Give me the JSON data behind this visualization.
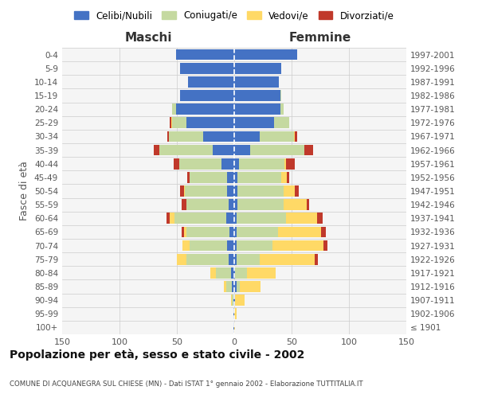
{
  "age_groups": [
    "100+",
    "95-99",
    "90-94",
    "85-89",
    "80-84",
    "75-79",
    "70-74",
    "65-69",
    "60-64",
    "55-59",
    "50-54",
    "45-49",
    "40-44",
    "35-39",
    "30-34",
    "25-29",
    "20-24",
    "15-19",
    "10-14",
    "5-9",
    "0-4"
  ],
  "birth_years": [
    "≤ 1901",
    "1902-1906",
    "1907-1911",
    "1912-1916",
    "1917-1921",
    "1922-1926",
    "1927-1931",
    "1932-1936",
    "1937-1941",
    "1942-1946",
    "1947-1951",
    "1952-1956",
    "1957-1961",
    "1962-1966",
    "1967-1971",
    "1972-1976",
    "1977-1981",
    "1982-1986",
    "1987-1991",
    "1992-1996",
    "1997-2001"
  ],
  "maschi": {
    "celibi": [
      1,
      1,
      1,
      2,
      3,
      5,
      6,
      4,
      7,
      5,
      6,
      6,
      11,
      19,
      27,
      42,
      51,
      47,
      40,
      47,
      51
    ],
    "coniugati": [
      0,
      0,
      1,
      5,
      13,
      37,
      33,
      38,
      45,
      37,
      37,
      33,
      37,
      46,
      30,
      12,
      3,
      0,
      0,
      0,
      0
    ],
    "vedovi": [
      0,
      0,
      1,
      2,
      5,
      8,
      6,
      2,
      4,
      0,
      1,
      0,
      0,
      0,
      0,
      1,
      0,
      0,
      0,
      0,
      0
    ],
    "divorziati": [
      0,
      0,
      0,
      0,
      0,
      0,
      0,
      2,
      3,
      4,
      3,
      2,
      5,
      5,
      1,
      1,
      0,
      0,
      0,
      0,
      0
    ]
  },
  "femmine": {
    "nubili": [
      0,
      0,
      1,
      2,
      1,
      2,
      2,
      2,
      2,
      3,
      3,
      3,
      4,
      14,
      22,
      35,
      40,
      40,
      39,
      41,
      55
    ],
    "coniugate": [
      0,
      0,
      0,
      3,
      10,
      20,
      31,
      36,
      43,
      40,
      40,
      38,
      40,
      47,
      30,
      13,
      3,
      1,
      0,
      0,
      0
    ],
    "vedove": [
      1,
      2,
      8,
      18,
      25,
      48,
      45,
      38,
      27,
      20,
      10,
      5,
      1,
      0,
      1,
      0,
      0,
      0,
      0,
      0,
      0
    ],
    "divorziate": [
      0,
      0,
      0,
      0,
      0,
      3,
      3,
      4,
      5,
      2,
      3,
      2,
      8,
      8,
      2,
      0,
      0,
      0,
      0,
      0,
      0
    ]
  },
  "colors": {
    "celibe": "#4472C4",
    "coniugato": "#c5d9a0",
    "vedovo": "#ffd966",
    "divorziato": "#c0392b"
  },
  "title": "Popolazione per età, sesso e stato civile - 2002",
  "subtitle": "COMUNE DI ACQUANEGRA SUL CHIESE (MN) - Dati ISTAT 1° gennaio 2002 - Elaborazione TUTTITALIA.IT",
  "xlabel_left": "Maschi",
  "xlabel_right": "Femmine",
  "ylabel": "Fasce di età",
  "xlim": 150,
  "bg_color": "#ffffff",
  "plot_bg": "#f5f5f5",
  "grid_color": "#cccccc"
}
